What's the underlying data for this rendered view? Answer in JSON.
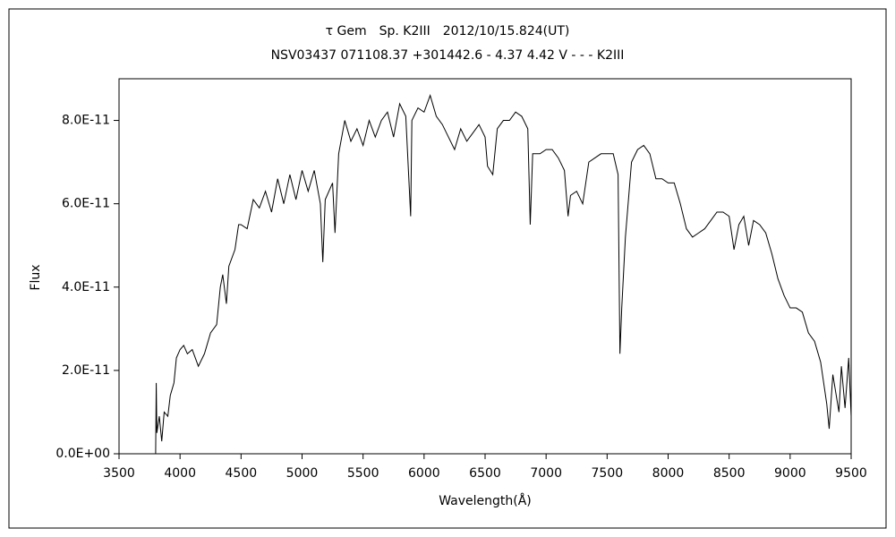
{
  "chart_data": {
    "type": "line",
    "title": "τ Gem　Sp. K2III　2012/10/15.824(UT)",
    "subtitle": "NSV03437 071108.37 +301442.6 - 4.37 4.42 V - - - K2III",
    "xlabel": "Wavelength(Å)",
    "ylabel": "Flux",
    "xlim": [
      3500,
      9500
    ],
    "xticks": [
      3500,
      4000,
      4500,
      5000,
      5500,
      6000,
      6500,
      7000,
      7500,
      8000,
      8500,
      9000,
      9500
    ],
    "ylim": [
      0,
      9e-11
    ],
    "yticks": [
      {
        "value": 0,
        "label": "0.0E+00"
      },
      {
        "value": 2e-11,
        "label": "2.0E-11"
      },
      {
        "value": 4e-11,
        "label": "4.0E-11"
      },
      {
        "value": 6e-11,
        "label": "6.0E-11"
      },
      {
        "value": 8e-11,
        "label": "8.0E-11"
      }
    ],
    "grid": false,
    "series": [
      {
        "color": "#000000",
        "x": [
          3800,
          3805,
          3810,
          3830,
          3850,
          3870,
          3900,
          3920,
          3950,
          3970,
          4000,
          4030,
          4060,
          4100,
          4150,
          4200,
          4250,
          4300,
          4330,
          4350,
          4380,
          4400,
          4450,
          4480,
          4500,
          4550,
          4600,
          4650,
          4700,
          4750,
          4800,
          4850,
          4900,
          4950,
          5000,
          5050,
          5100,
          5150,
          5170,
          5190,
          5250,
          5270,
          5300,
          5350,
          5400,
          5450,
          5500,
          5550,
          5600,
          5650,
          5700,
          5750,
          5800,
          5850,
          5890,
          5900,
          5950,
          6000,
          6050,
          6100,
          6150,
          6200,
          6250,
          6300,
          6350,
          6400,
          6450,
          6500,
          6520,
          6563,
          6600,
          6650,
          6700,
          6750,
          6800,
          6850,
          6870,
          6890,
          6950,
          7000,
          7050,
          7100,
          7150,
          7180,
          7200,
          7250,
          7300,
          7350,
          7400,
          7450,
          7500,
          7550,
          7590,
          7605,
          7620,
          7650,
          7700,
          7750,
          7800,
          7850,
          7900,
          7950,
          8000,
          8050,
          8100,
          8150,
          8200,
          8250,
          8300,
          8350,
          8400,
          8450,
          8500,
          8540,
          8580,
          8620,
          8660,
          8700,
          8750,
          8800,
          8850,
          8900,
          8950,
          9000,
          9050,
          9100,
          9150,
          9200,
          9250,
          9300,
          9320,
          9350,
          9400,
          9420,
          9450,
          9480,
          9500
        ],
        "values": [
          0,
          1.7e-11,
          5e-12,
          9e-12,
          3e-12,
          1e-11,
          9e-12,
          1.4e-11,
          1.7e-11,
          2.3e-11,
          2.5e-11,
          2.6e-11,
          2.4e-11,
          2.5e-11,
          2.1e-11,
          2.4e-11,
          2.9e-11,
          3.1e-11,
          4e-11,
          4.3e-11,
          3.6e-11,
          4.5e-11,
          4.9e-11,
          5.5e-11,
          5.5e-11,
          5.4e-11,
          6.1e-11,
          5.9e-11,
          6.3e-11,
          5.8e-11,
          6.6e-11,
          6e-11,
          6.7e-11,
          6.1e-11,
          6.8e-11,
          6.3e-11,
          6.8e-11,
          6e-11,
          4.6e-11,
          6.1e-11,
          6.5e-11,
          5.3e-11,
          7.2e-11,
          8e-11,
          7.5e-11,
          7.8e-11,
          7.4e-11,
          8e-11,
          7.6e-11,
          8e-11,
          8.2e-11,
          7.6e-11,
          8.4e-11,
          8.1e-11,
          5.7e-11,
          8e-11,
          8.3e-11,
          8.2e-11,
          8.6e-11,
          8.1e-11,
          7.9e-11,
          7.6e-11,
          7.3e-11,
          7.8e-11,
          7.5e-11,
          7.7e-11,
          7.9e-11,
          7.6e-11,
          6.9e-11,
          6.7e-11,
          7.8e-11,
          8e-11,
          8e-11,
          8.2e-11,
          8.1e-11,
          7.8e-11,
          5.5e-11,
          7.2e-11,
          7.2e-11,
          7.3e-11,
          7.3e-11,
          7.1e-11,
          6.8e-11,
          5.7e-11,
          6.2e-11,
          6.3e-11,
          6e-11,
          7e-11,
          7.1e-11,
          7.2e-11,
          7.2e-11,
          7.2e-11,
          6.7e-11,
          2.4e-11,
          3.5e-11,
          5.2e-11,
          7e-11,
          7.3e-11,
          7.4e-11,
          7.2e-11,
          6.6e-11,
          6.6e-11,
          6.5e-11,
          6.5e-11,
          6e-11,
          5.4e-11,
          5.2e-11,
          5.3e-11,
          5.4e-11,
          5.6e-11,
          5.8e-11,
          5.8e-11,
          5.7e-11,
          4.9e-11,
          5.5e-11,
          5.7e-11,
          5e-11,
          5.6e-11,
          5.5e-11,
          5.3e-11,
          4.8e-11,
          4.2e-11,
          3.8e-11,
          3.5e-11,
          3.5e-11,
          3.4e-11,
          2.9e-11,
          2.7e-11,
          2.2e-11,
          1.2e-11,
          6e-12,
          1.9e-11,
          1e-11,
          2.1e-11,
          1.1e-11,
          2.3e-11,
          9e-12
        ]
      }
    ]
  }
}
